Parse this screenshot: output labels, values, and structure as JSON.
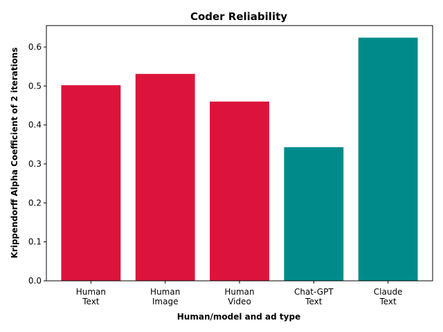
{
  "chart_data": {
    "type": "bar",
    "title": "Coder Reliability",
    "xlabel": "Human/model and ad type",
    "ylabel": "Krippendorff Alpha Coefficient of 2 iterations",
    "categories": [
      [
        "Human",
        "Text"
      ],
      [
        "Human",
        "Image"
      ],
      [
        "Human",
        "Video"
      ],
      [
        "Chat-GPT",
        "Text"
      ],
      [
        "Claude",
        "Text"
      ]
    ],
    "values": [
      0.502,
      0.531,
      0.46,
      0.343,
      0.624
    ],
    "bar_colors": [
      "#DC143C",
      "#DC143C",
      "#DC143C",
      "#008B8B",
      "#008B8B"
    ],
    "ylim": [
      0,
      0.655
    ],
    "yticks": [
      0.0,
      0.1,
      0.2,
      0.3,
      0.4,
      0.5,
      0.6
    ],
    "ytick_labels": [
      "0.0",
      "0.1",
      "0.2",
      "0.3",
      "0.4",
      "0.5",
      "0.6"
    ],
    "grid": false,
    "legend": "none"
  }
}
